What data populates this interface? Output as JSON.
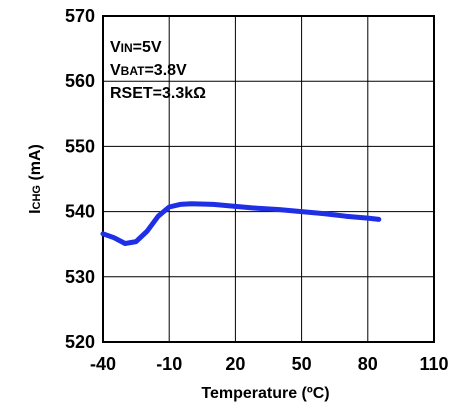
{
  "chart_data": {
    "type": "line",
    "xlabel": "Temperature (ºC)",
    "ylabel_parts": [
      "I",
      "CHG",
      " (mA)"
    ],
    "xlim": [
      -40,
      110
    ],
    "ylim": [
      520,
      570
    ],
    "xticks": [
      -40,
      -10,
      20,
      50,
      80,
      110
    ],
    "yticks": [
      520,
      530,
      540,
      550,
      560,
      570
    ],
    "grid": true,
    "annotations": [
      {
        "prefix": "V",
        "small": "IN",
        "rest": "=5V"
      },
      {
        "prefix": "V",
        "small": "BAT",
        "rest": "=3.8V"
      },
      {
        "prefix": "RSET=3.3kΩ",
        "small": "",
        "rest": ""
      }
    ],
    "series": [
      {
        "color": "#1f2fe6",
        "x": [
          -40,
          -35,
          -30,
          -25,
          -20,
          -15,
          -10,
          -5,
          0,
          10,
          20,
          30,
          40,
          50,
          60,
          70,
          80,
          85
        ],
        "y": [
          536.6,
          536.0,
          535.1,
          535.4,
          537.0,
          539.3,
          540.7,
          541.1,
          541.2,
          541.1,
          540.8,
          540.5,
          540.3,
          540.0,
          539.7,
          539.3,
          539.0,
          538.8
        ]
      }
    ]
  }
}
